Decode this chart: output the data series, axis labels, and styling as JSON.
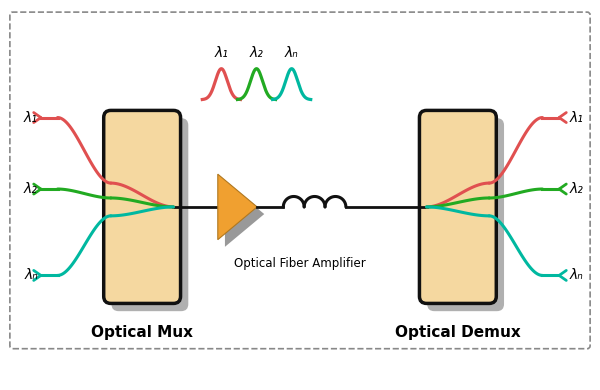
{
  "bg_color": "#ffffff",
  "mux_label": "Optical Mux",
  "demux_label": "Optical Demux",
  "amplifier_label": "Optical Fiber Amplifier",
  "lambda_labels": [
    "λ₁",
    "λ₂",
    "λₙ"
  ],
  "colors": {
    "red": "#e05050",
    "green": "#22aa22",
    "teal": "#00b8a0",
    "box_fill": "#f5d8a0",
    "box_border": "#111111",
    "shadow": "#b0b0b0",
    "amplifier_fill": "#f0a030",
    "amplifier_shadow": "#999999",
    "line_black": "#111111"
  },
  "figure_size": [
    6.0,
    3.9
  ],
  "dpi": 100,
  "xlim": [
    0,
    10
  ],
  "ylim": [
    0,
    6.5
  ]
}
